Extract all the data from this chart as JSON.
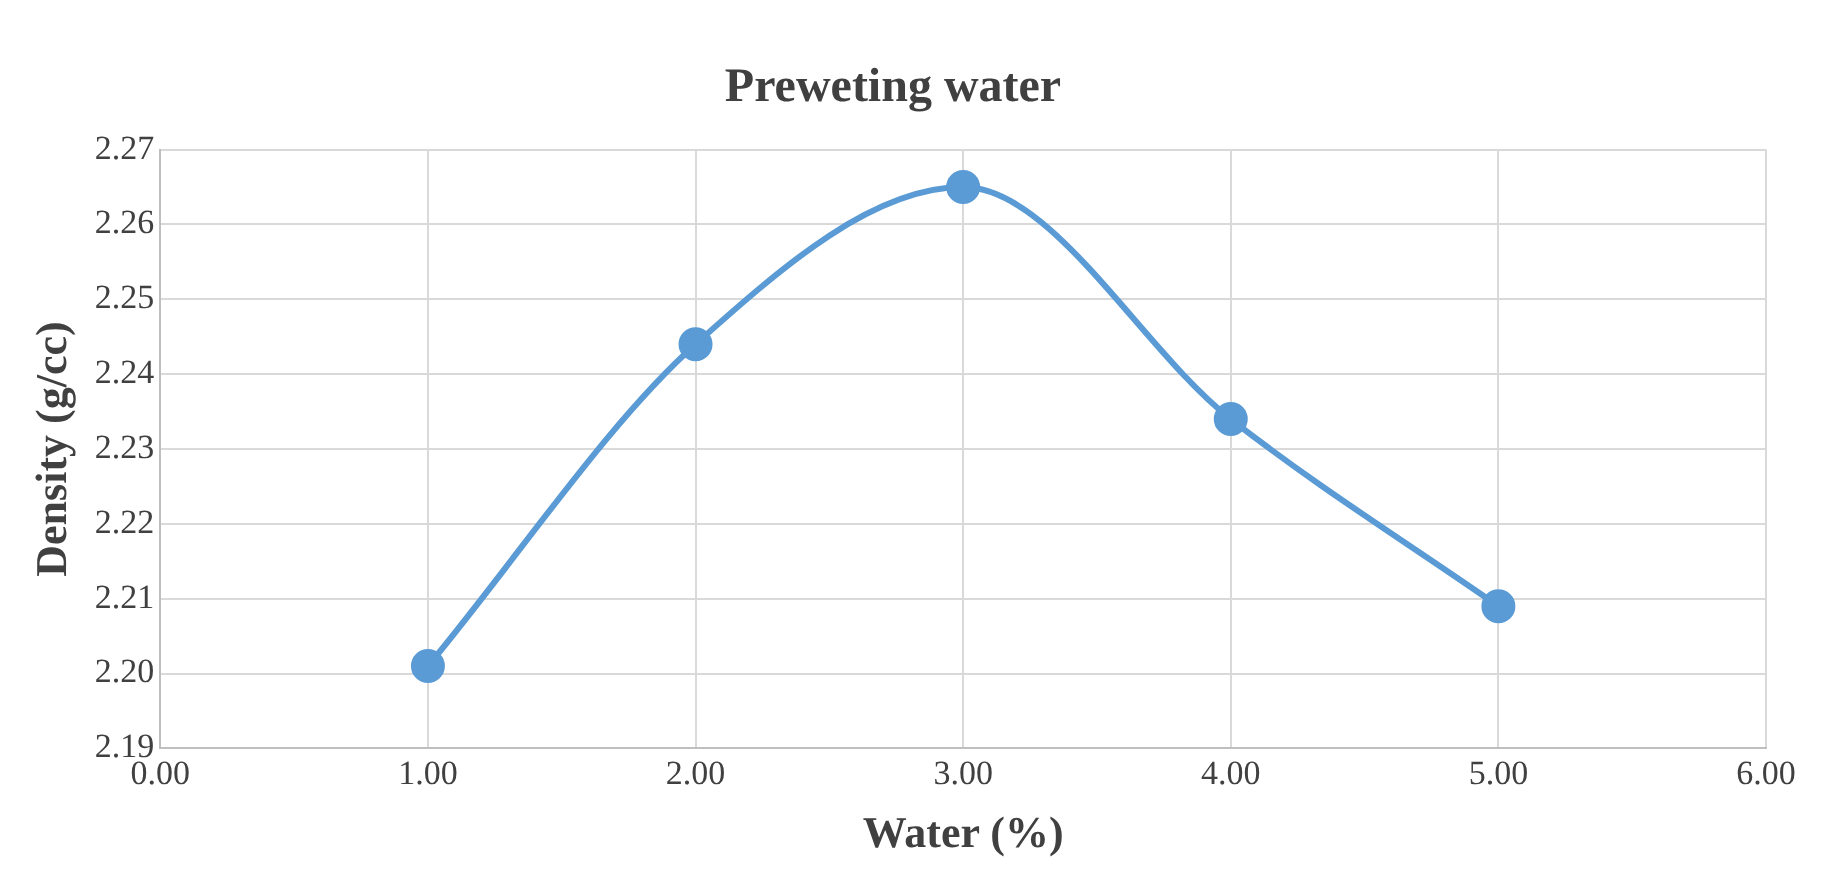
{
  "chart_data": {
    "type": "line",
    "title": "Preweting water",
    "xlabel": "Water (%)",
    "ylabel": "Density (g/cc)",
    "x": [
      1,
      2,
      3,
      4,
      5
    ],
    "series": [
      {
        "color": "#5b9bd5",
        "values": [
          2.201,
          2.244,
          2.265,
          2.234,
          2.209
        ]
      }
    ],
    "xlim": [
      0,
      6
    ],
    "xticks": [
      {
        "value": 0,
        "label": "0.00"
      },
      {
        "value": 1,
        "label": "1.00"
      },
      {
        "value": 2,
        "label": "2.00"
      },
      {
        "value": 3,
        "label": "3.00"
      },
      {
        "value": 4,
        "label": "4.00"
      },
      {
        "value": 5,
        "label": "5.00"
      },
      {
        "value": 6,
        "label": "6.00"
      }
    ],
    "ylim": [
      2.19,
      2.27
    ],
    "yticks": [
      2.19,
      {
        "value": 2.2,
        "label": "2.20"
      },
      2.21,
      2.22,
      2.23,
      2.24,
      2.25,
      2.26,
      2.27
    ],
    "grid": true,
    "marker": "circle",
    "line_style": "solid"
  }
}
